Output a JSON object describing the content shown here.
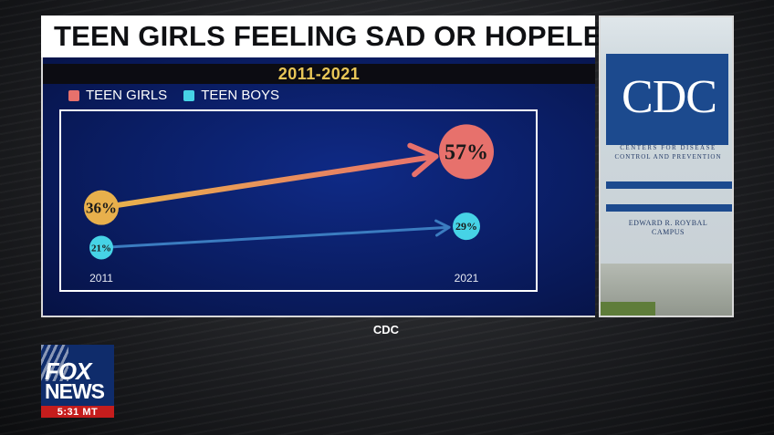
{
  "headline": "TEEN GIRLS FEELING SAD OR HOPELESS",
  "subtitle": "2011-2021",
  "source": "CDC",
  "photo": {
    "logo_text": "CDC",
    "sign_line1": "CENTERS FOR DISEASE",
    "sign_line2": "CONTROL AND PREVENTION",
    "sign_line3": "EDWARD R. ROYBAL",
    "sign_line4": "CAMPUS"
  },
  "network": {
    "logo_top": "FOX",
    "logo_bottom": "NEWS",
    "time": "5:31 MT"
  },
  "colors": {
    "girls": "#e7716c",
    "girls_start": "#e8b04c",
    "boys": "#3b7cc0",
    "boys_marker": "#46d3e6",
    "title_band_text": "#e8c657"
  },
  "chart_data": {
    "type": "line",
    "title": "TEEN GIRLS FEELING SAD OR HOPELESS",
    "subtitle": "2011-2021",
    "x": [
      "2011",
      "2021"
    ],
    "ylim": [
      15,
      65
    ],
    "grid": false,
    "legend": "top-left",
    "series": [
      {
        "name": "TEEN GIRLS",
        "values": [
          36,
          57
        ],
        "labels": [
          "36%",
          "57%"
        ]
      },
      {
        "name": "TEEN BOYS",
        "values": [
          21,
          29
        ],
        "labels": [
          "21%",
          "29%"
        ]
      }
    ]
  }
}
